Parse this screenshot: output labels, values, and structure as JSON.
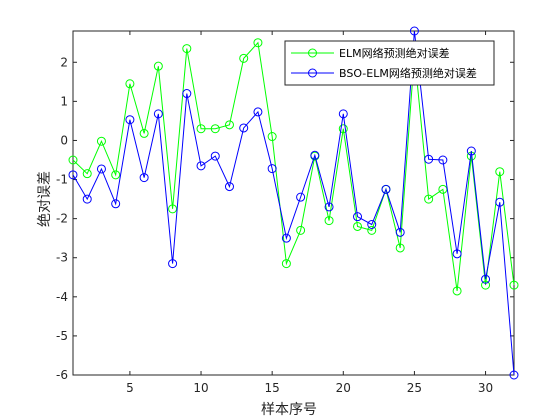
{
  "chart_data": {
    "type": "line",
    "title": "",
    "xlabel": "样本序号",
    "ylabel": "绝对误差",
    "xlim": [
      1,
      32
    ],
    "ylim": [
      -6,
      2.8
    ],
    "xticks": [
      5,
      10,
      15,
      20,
      25,
      30
    ],
    "yticks": [
      -6,
      -5,
      -4,
      -3,
      -2,
      -1,
      0,
      1,
      2
    ],
    "grid": false,
    "legend_position": "top-right",
    "x": [
      1,
      2,
      3,
      4,
      5,
      6,
      7,
      8,
      9,
      10,
      11,
      12,
      13,
      14,
      15,
      16,
      17,
      18,
      19,
      20,
      21,
      22,
      23,
      24,
      25,
      26,
      27,
      28,
      29,
      30,
      31,
      32
    ],
    "series": [
      {
        "name": "ELM网络预测绝对误差",
        "color": "#00ff00",
        "marker": "circle",
        "values": [
          -0.5,
          -0.85,
          -0.02,
          -0.88,
          1.45,
          0.18,
          1.9,
          -1.75,
          2.35,
          0.3,
          0.3,
          0.4,
          2.1,
          2.5,
          0.1,
          -3.15,
          -2.3,
          -0.4,
          -2.05,
          0.3,
          -2.2,
          -2.3,
          -1.25,
          -2.75,
          2.2,
          -1.5,
          -1.25,
          -3.85,
          -0.4,
          -3.7,
          -0.8,
          -3.7
        ]
      },
      {
        "name": "BSO-ELM网络预测绝对误差",
        "color": "#0000ff",
        "marker": "circle",
        "values": [
          -0.88,
          -1.5,
          -0.73,
          -1.62,
          0.53,
          -0.95,
          0.68,
          -3.15,
          1.2,
          -0.65,
          -0.4,
          -1.18,
          0.32,
          0.73,
          -0.72,
          -2.5,
          -1.45,
          -0.38,
          -1.7,
          0.68,
          -1.95,
          -2.15,
          -1.25,
          -2.35,
          2.8,
          -0.48,
          -0.5,
          -2.9,
          -0.27,
          -3.55,
          -1.58,
          -6.0
        ]
      }
    ]
  }
}
